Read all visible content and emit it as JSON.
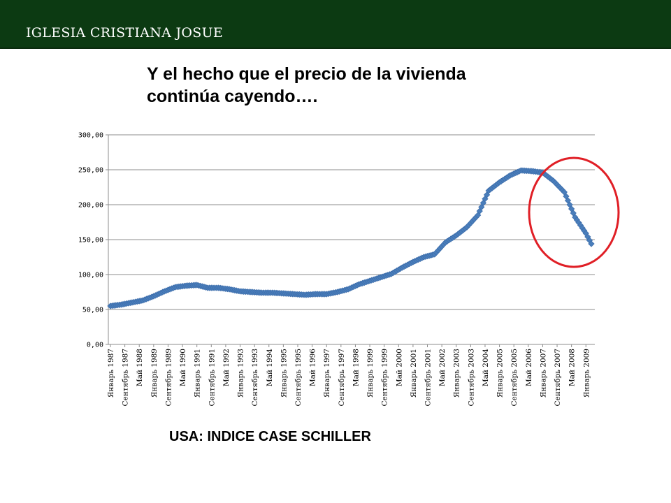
{
  "header": {
    "title": "IGLESIA CRISTIANA JOSUE",
    "bar_color": "#0c3a12"
  },
  "heading": {
    "text": "Y el hecho que el precio de la vivienda\ncontinúa cayendo…."
  },
  "caption": {
    "text": "USA: INDICE CASE SCHILLER"
  },
  "annotation": {
    "shape": "ellipse",
    "color": "#e01f26",
    "highlights": "2007–2009 decline"
  },
  "chart_data": {
    "type": "line",
    "marker": "diamond",
    "color": "#4a7ebb",
    "ylim": [
      0,
      300
    ],
    "yticks": [
      "0,00",
      "50,00",
      "100,00",
      "150,00",
      "200,00",
      "250,00",
      "300,00"
    ],
    "grid": "horizontal",
    "legend": "none",
    "x_range": [
      "1987-01",
      "2009-04"
    ],
    "xtick_labels": [
      {
        "date": "1987-01",
        "label": "Январь 1987"
      },
      {
        "date": "1987-09",
        "label": "Сентябрь 1987"
      },
      {
        "date": "1988-05",
        "label": "Май 1988"
      },
      {
        "date": "1989-01",
        "label": "Январь 1989"
      },
      {
        "date": "1989-09",
        "label": "Сентябрь 1989"
      },
      {
        "date": "1990-05",
        "label": "Май 1990"
      },
      {
        "date": "1991-01",
        "label": "Январь 1991"
      },
      {
        "date": "1991-09",
        "label": "Сентябрь 1991"
      },
      {
        "date": "1992-05",
        "label": "Май 1992"
      },
      {
        "date": "1993-01",
        "label": "Январь 1993"
      },
      {
        "date": "1993-09",
        "label": "Сентябрь 1993"
      },
      {
        "date": "1994-05",
        "label": "Май 1994"
      },
      {
        "date": "1995-01",
        "label": "Январь 1995"
      },
      {
        "date": "1995-09",
        "label": "Сентябрь 1995"
      },
      {
        "date": "1996-05",
        "label": "Май 1996"
      },
      {
        "date": "1997-01",
        "label": "Январь 1997"
      },
      {
        "date": "1997-09",
        "label": "Сентябрь 1997"
      },
      {
        "date": "1998-05",
        "label": "Май 1998"
      },
      {
        "date": "1999-01",
        "label": "Январь 1999"
      },
      {
        "date": "1999-09",
        "label": "Сентябрь 1999"
      },
      {
        "date": "2000-05",
        "label": "Май 2000"
      },
      {
        "date": "2001-01",
        "label": "Январь 2001"
      },
      {
        "date": "2001-09",
        "label": "Сентябрь 2001"
      },
      {
        "date": "2002-05",
        "label": "Май 2002"
      },
      {
        "date": "2003-01",
        "label": "Январь 2003"
      },
      {
        "date": "2003-09",
        "label": "Сентябрь 2003"
      },
      {
        "date": "2004-05",
        "label": "Май 2004"
      },
      {
        "date": "2005-01",
        "label": "Январь 2005"
      },
      {
        "date": "2005-09",
        "label": "Сентябрь 2005"
      },
      {
        "date": "2006-05",
        "label": "Май 2006"
      },
      {
        "date": "2007-01",
        "label": "Январь 2007"
      },
      {
        "date": "2007-09",
        "label": "Сентябрь 2007"
      },
      {
        "date": "2008-05",
        "label": "Май 2008"
      },
      {
        "date": "2009-01",
        "label": "Январь 2009"
      }
    ],
    "series": [
      {
        "x": [
          "1987-01",
          "1987-07",
          "1988-01",
          "1988-07",
          "1989-01",
          "1989-07",
          "1990-01",
          "1990-07",
          "1991-01",
          "1991-07",
          "1992-01",
          "1992-07",
          "1993-01",
          "1993-07",
          "1994-01",
          "1994-07",
          "1995-01",
          "1995-07",
          "1996-01",
          "1996-07",
          "1997-01",
          "1997-07",
          "1998-01",
          "1998-07",
          "1999-01",
          "1999-07",
          "2000-01",
          "2000-07",
          "2001-01",
          "2001-07",
          "2002-01",
          "2002-07",
          "2003-01",
          "2003-07",
          "2004-01",
          "2004-07",
          "2005-01",
          "2005-07",
          "2006-01",
          "2006-07",
          "2007-01",
          "2007-07",
          "2008-01",
          "2008-07",
          "2009-01",
          "2009-04"
        ],
        "values": [
          55,
          57,
          60,
          63,
          69,
          76,
          82,
          84,
          85,
          81,
          81,
          79,
          76,
          75,
          74,
          74,
          73,
          72,
          71,
          72,
          72,
          75,
          79,
          86,
          91,
          96,
          101,
          110,
          118,
          125,
          129,
          146,
          156,
          168,
          185,
          220,
          232,
          242,
          249,
          248,
          246,
          234,
          218,
          182,
          159,
          144
        ]
      }
    ]
  }
}
